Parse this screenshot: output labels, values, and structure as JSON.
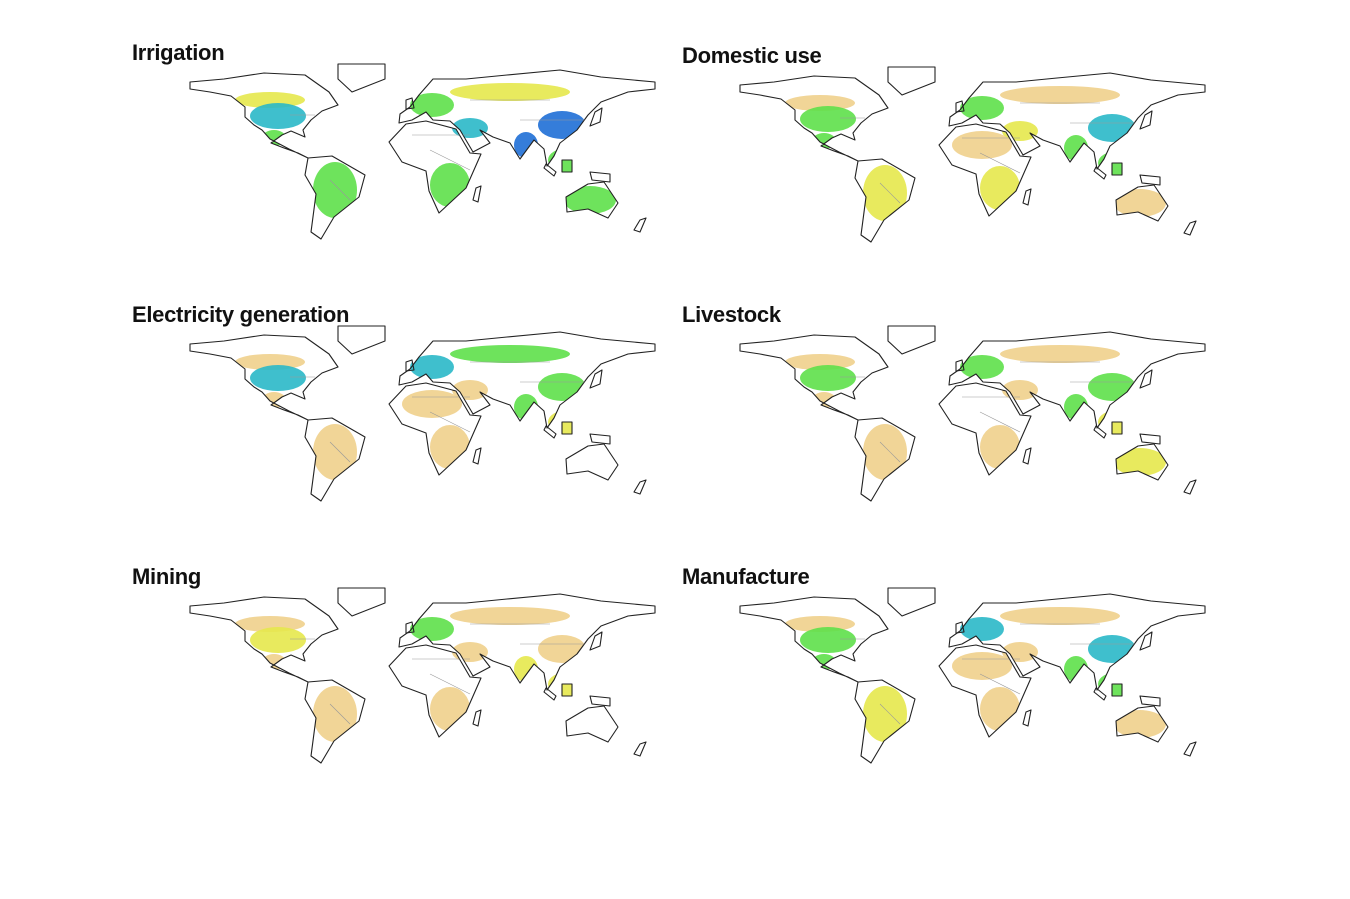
{
  "palette": {
    "blue": "#1f6fd6",
    "cyan": "#2ab8c8",
    "green": "#5ee04a",
    "yellow": "#e6e84c",
    "tan": "#f0d08c"
  },
  "panels": [
    {
      "title": "Irrigation",
      "regions": {
        "canada_south": "yellow",
        "usa": "cyan",
        "mexico": "green",
        "south_america": "green",
        "europe": "green",
        "russia": "yellow",
        "middle_east": "cyan",
        "africa_north": "none",
        "africa_south": "green",
        "india": "blue",
        "china": "blue",
        "se_asia": "green",
        "australia": "green"
      }
    },
    {
      "title": "Domestic use",
      "regions": {
        "canada_south": "tan",
        "usa": "green",
        "mexico": "green",
        "south_america": "yellow",
        "europe": "green",
        "russia": "tan",
        "middle_east": "yellow",
        "africa_north": "tan",
        "africa_south": "yellow",
        "india": "green",
        "china": "cyan",
        "se_asia": "green",
        "australia": "tan"
      }
    },
    {
      "title": "Electricity generation",
      "regions": {
        "canada_south": "tan",
        "usa": "cyan",
        "mexico": "tan",
        "south_america": "tan",
        "europe": "cyan",
        "russia": "green",
        "middle_east": "tan",
        "africa_north": "tan",
        "africa_south": "tan",
        "india": "green",
        "china": "green",
        "se_asia": "yellow",
        "australia": "none"
      }
    },
    {
      "title": "Livestock",
      "regions": {
        "canada_south": "tan",
        "usa": "green",
        "mexico": "tan",
        "south_america": "tan",
        "europe": "green",
        "russia": "tan",
        "middle_east": "tan",
        "africa_north": "none",
        "africa_south": "tan",
        "india": "green",
        "china": "green",
        "se_asia": "yellow",
        "australia": "yellow"
      }
    },
    {
      "title": "Mining",
      "regions": {
        "canada_south": "tan",
        "usa": "yellow",
        "mexico": "tan",
        "south_america": "tan",
        "europe": "green",
        "russia": "tan",
        "middle_east": "tan",
        "africa_north": "none",
        "africa_south": "tan",
        "india": "yellow",
        "china": "tan",
        "se_asia": "yellow",
        "australia": "none"
      }
    },
    {
      "title": "Manufacture",
      "regions": {
        "canada_south": "tan",
        "usa": "green",
        "mexico": "green",
        "south_america": "yellow",
        "europe": "cyan",
        "russia": "tan",
        "middle_east": "tan",
        "africa_north": "tan",
        "africa_south": "tan",
        "india": "green",
        "china": "cyan",
        "se_asia": "green",
        "australia": "tan"
      }
    }
  ]
}
